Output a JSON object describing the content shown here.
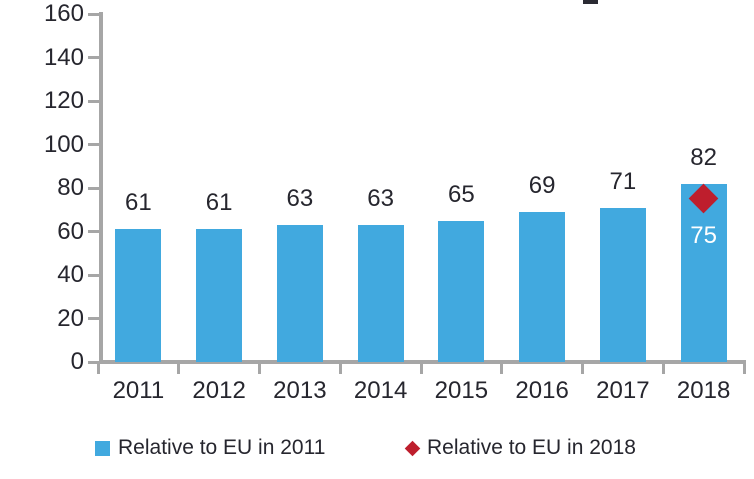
{
  "chart_data": {
    "type": "bar",
    "categories": [
      "2011",
      "2012",
      "2013",
      "2014",
      "2015",
      "2016",
      "2017",
      "2018"
    ],
    "series": [
      {
        "name": "Relative to EU in 2011",
        "type": "bar",
        "color": "#41a9df",
        "values": [
          61,
          61,
          63,
          63,
          65,
          69,
          71,
          82
        ]
      },
      {
        "name": "Relative to EU in 2018",
        "type": "scatter",
        "marker": "diamond",
        "color": "#be1e2d",
        "points": [
          {
            "category": "2018",
            "value": 75,
            "value_label": "75",
            "label_color": "#ffffff"
          }
        ]
      }
    ],
    "bar_value_labels": [
      "61",
      "61",
      "63",
      "63",
      "65",
      "69",
      "71",
      "82"
    ],
    "ylim": [
      0,
      160
    ],
    "ytick_step": 20,
    "ytick_labels": [
      "0",
      "20",
      "40",
      "60",
      "80",
      "100",
      "120",
      "140",
      "160"
    ],
    "grid": false,
    "legend_position": "bottom"
  },
  "colors": {
    "bar": "#41a9df",
    "marker": "#be1e2d",
    "axis": "#a6a6a6",
    "text": "#26262e",
    "point_label": "#ffffff"
  },
  "legend": {
    "items": [
      {
        "label": "Relative to EU in 2011",
        "swatch": "square",
        "color": "#41a9df"
      },
      {
        "label": "Relative to EU in 2018",
        "swatch": "diamond",
        "color": "#be1e2d"
      }
    ]
  }
}
